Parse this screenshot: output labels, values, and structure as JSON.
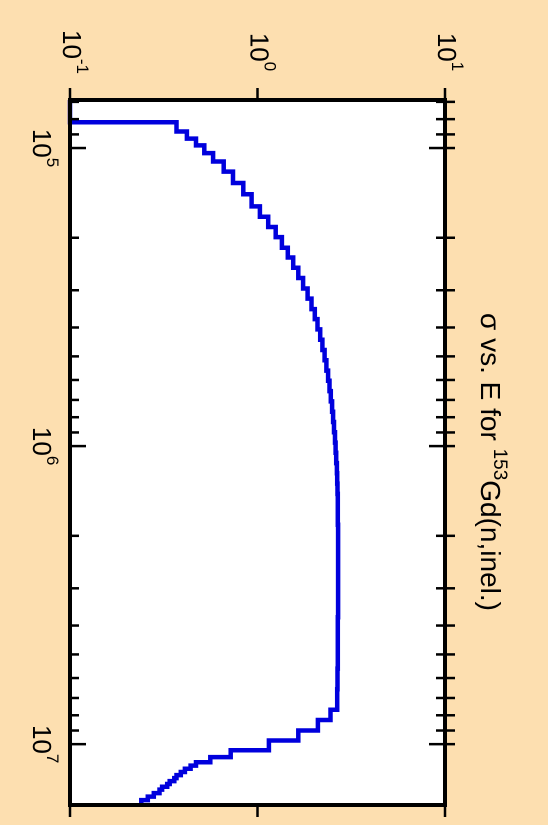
{
  "chart_data": {
    "type": "line",
    "orientation": "rotated-90-clockwise",
    "step": true,
    "title": {
      "prefix": "σ vs. E for ",
      "mass": "153",
      "suffix": "Gd(n,inel.)"
    },
    "xlabel": "",
    "ylabel": "",
    "x_scale": "log",
    "y_scale": "log",
    "xlim": [
      69000,
      16000000
    ],
    "ylim": [
      0.1,
      10
    ],
    "x_ticks": [
      {
        "base": "10",
        "exp": "5",
        "value": 100000
      },
      {
        "base": "10",
        "exp": "6",
        "value": 1000000
      },
      {
        "base": "10",
        "exp": "7",
        "value": 10000000
      }
    ],
    "y_ticks": [
      {
        "base": "10",
        "exp": "-1",
        "value": 0.1
      },
      {
        "base": "10",
        "exp": "0",
        "value": 1
      },
      {
        "base": "10",
        "exp": "1",
        "value": 10
      }
    ],
    "grid": false,
    "colors": {
      "background": "#fddfb0",
      "plot_area": "#ffffff",
      "series": "#0000dd",
      "axis": "#000000"
    },
    "series": [
      {
        "color": "#0000dd",
        "x": [
          69000,
          82000,
          88000,
          93000,
          98000,
          104000,
          111000,
          120000,
          131000,
          143000,
          157000,
          170000,
          184000,
          199000,
          216000,
          233000,
          252000,
          273000,
          296000,
          320000,
          347000,
          375000,
          406000,
          440000,
          476000,
          515000,
          558000,
          604000,
          654000,
          708000,
          767000,
          830000,
          899000,
          973000,
          1053000,
          1140000,
          1234000,
          1336000,
          1447000,
          1566000,
          1696000,
          1836000,
          1988000,
          2152000,
          2330000,
          2522000,
          2731000,
          2956000,
          3200000,
          3465000,
          3751000,
          4061000,
          4397000,
          4760000,
          5153000,
          5579000,
          6040000,
          6540000,
          7080000,
          7660000,
          8300000,
          9000000,
          9720000,
          10480000,
          11050000,
          11500000,
          11800000,
          12100000,
          12400000,
          12700000,
          13000000,
          13300000,
          13600000,
          13900000,
          14200000,
          14600000,
          15000000,
          15400000,
          16000000
        ],
        "y": [
          0.1,
          0.37,
          0.42,
          0.47,
          0.52,
          0.58,
          0.66,
          0.74,
          0.84,
          0.93,
          1.03,
          1.14,
          1.25,
          1.35,
          1.45,
          1.55,
          1.65,
          1.75,
          1.85,
          1.94,
          2.02,
          2.09,
          2.16,
          2.22,
          2.28,
          2.33,
          2.38,
          2.42,
          2.46,
          2.5,
          2.53,
          2.56,
          2.59,
          2.61,
          2.63,
          2.65,
          2.66,
          2.67,
          2.68,
          2.68,
          2.68,
          2.69,
          2.69,
          2.69,
          2.69,
          2.69,
          2.69,
          2.69,
          2.69,
          2.69,
          2.68,
          2.68,
          2.68,
          2.68,
          2.68,
          2.67,
          2.67,
          2.66,
          2.66,
          2.45,
          2.1,
          1.65,
          1.15,
          0.72,
          0.56,
          0.47,
          0.44,
          0.41,
          0.39,
          0.37,
          0.36,
          0.34,
          0.33,
          0.31,
          0.3,
          0.28,
          0.26,
          0.24,
          0.24
        ]
      }
    ]
  }
}
